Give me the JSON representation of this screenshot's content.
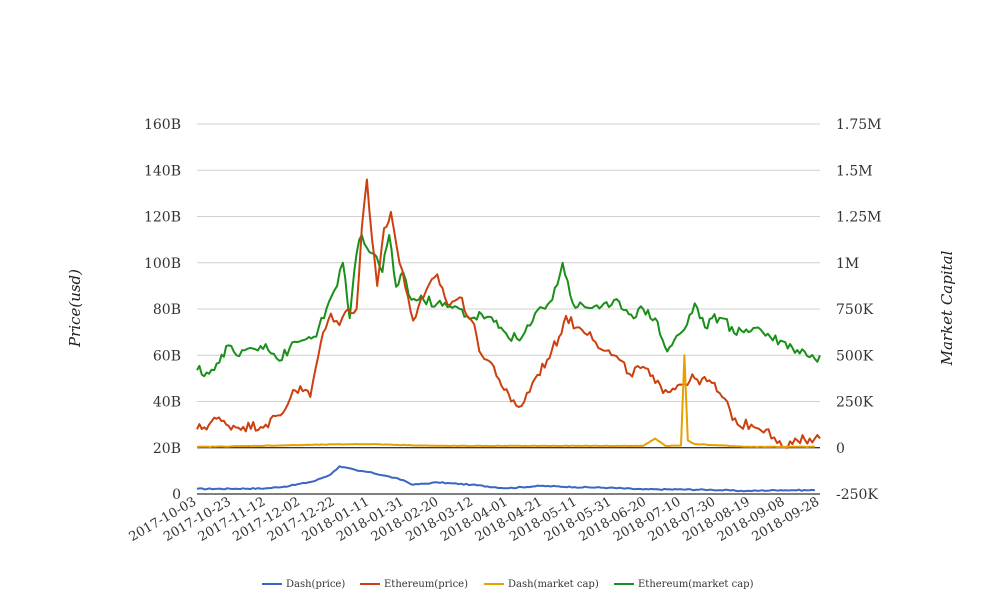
{
  "chart_data": {
    "type": "line",
    "title": "",
    "x_ticks": [
      "2017-10-03",
      "2017-10-23",
      "2017-11-12",
      "2017-12-02",
      "2017-12-22",
      "2018-01-11",
      "2018-01-31",
      "2018-02-20",
      "2018-03-12",
      "2018-04-01",
      "2018-04-21",
      "2018-05-11",
      "2018-05-31",
      "2018-06-20",
      "2018-07-10",
      "2018-07-30",
      "2018-08-19",
      "2018-09-08",
      "2018-09-28"
    ],
    "x_range": [
      "2017-10-03",
      "2018-10-01"
    ],
    "y_left": {
      "label": "Price(usd)",
      "ticks": [
        "0",
        "20B",
        "40B",
        "60B",
        "80B",
        "100B",
        "120B",
        "140B",
        "160B"
      ],
      "range": [
        0,
        160
      ]
    },
    "y_right": {
      "label": "Market Capital",
      "ticks": [
        "-250K",
        "0",
        "250K",
        "500K",
        "750K",
        "1M",
        "1.25M",
        "1.5M",
        "1.75M"
      ],
      "range": [
        -250,
        1750
      ]
    },
    "grid": true,
    "legend_position": "bottom",
    "series": [
      {
        "name": "Dash(price)",
        "axis": "left",
        "color": "#3b67c2",
        "points": [
          [
            "2017-10-03",
            2.2
          ],
          [
            "2017-11-12",
            2.4
          ],
          [
            "2017-11-26",
            3.5
          ],
          [
            "2017-12-10",
            5.5
          ],
          [
            "2017-12-20",
            8.5
          ],
          [
            "2017-12-25",
            12
          ],
          [
            "2018-01-05",
            10
          ],
          [
            "2018-01-11",
            9.5
          ],
          [
            "2018-01-20",
            8
          ],
          [
            "2018-01-31",
            6
          ],
          [
            "2018-02-06",
            4
          ],
          [
            "2018-02-20",
            5
          ],
          [
            "2018-03-12",
            4
          ],
          [
            "2018-04-01",
            2.5
          ],
          [
            "2018-04-21",
            3.5
          ],
          [
            "2018-05-11",
            3
          ],
          [
            "2018-05-31",
            2.7
          ],
          [
            "2018-06-20",
            2
          ],
          [
            "2018-07-10",
            2
          ],
          [
            "2018-07-30",
            1.8
          ],
          [
            "2018-08-19",
            1.3
          ],
          [
            "2018-09-08",
            1.7
          ],
          [
            "2018-09-28",
            1.6
          ]
        ]
      },
      {
        "name": "Ethereum(price)",
        "axis": "left",
        "color": "#cc4010",
        "points": [
          [
            "2017-10-03",
            28
          ],
          [
            "2017-10-10",
            30
          ],
          [
            "2017-10-13",
            33
          ],
          [
            "2017-10-20",
            30
          ],
          [
            "2017-10-30",
            29
          ],
          [
            "2017-11-12",
            30
          ],
          [
            "2017-11-22",
            35
          ],
          [
            "2017-11-28",
            45
          ],
          [
            "2017-12-05",
            45
          ],
          [
            "2017-12-08",
            42
          ],
          [
            "2017-12-14",
            65
          ],
          [
            "2017-12-20",
            78
          ],
          [
            "2017-12-25",
            73
          ],
          [
            "2017-12-30",
            80
          ],
          [
            "2018-01-04",
            80
          ],
          [
            "2018-01-07",
            115
          ],
          [
            "2018-01-10",
            136
          ],
          [
            "2018-01-13",
            110
          ],
          [
            "2018-01-16",
            90
          ],
          [
            "2018-01-20",
            115
          ],
          [
            "2018-01-24",
            122
          ],
          [
            "2018-01-29",
            100
          ],
          [
            "2018-02-03",
            85
          ],
          [
            "2018-02-06",
            75
          ],
          [
            "2018-02-12",
            85
          ],
          [
            "2018-02-20",
            95
          ],
          [
            "2018-02-26",
            82
          ],
          [
            "2018-03-05",
            85
          ],
          [
            "2018-03-12",
            75
          ],
          [
            "2018-03-18",
            60
          ],
          [
            "2018-03-25",
            55
          ],
          [
            "2018-03-31",
            45
          ],
          [
            "2018-04-04",
            40
          ],
          [
            "2018-04-10",
            38
          ],
          [
            "2018-04-18",
            50
          ],
          [
            "2018-04-25",
            58
          ],
          [
            "2018-05-02",
            68
          ],
          [
            "2018-05-06",
            77
          ],
          [
            "2018-05-12",
            72
          ],
          [
            "2018-05-20",
            70
          ],
          [
            "2018-05-28",
            62
          ],
          [
            "2018-06-03",
            60
          ],
          [
            "2018-06-12",
            52
          ],
          [
            "2018-06-20",
            55
          ],
          [
            "2018-06-27",
            48
          ],
          [
            "2018-07-03",
            45
          ],
          [
            "2018-07-10",
            47
          ],
          [
            "2018-07-20",
            50
          ],
          [
            "2018-07-30",
            48
          ],
          [
            "2018-08-05",
            42
          ],
          [
            "2018-08-14",
            30
          ],
          [
            "2018-08-22",
            30
          ],
          [
            "2018-09-01",
            28
          ],
          [
            "2018-09-06",
            22
          ],
          [
            "2018-09-12",
            20
          ],
          [
            "2018-09-18",
            23
          ],
          [
            "2018-09-25",
            24
          ],
          [
            "2018-10-01",
            24
          ]
        ]
      },
      {
        "name": "Dash(market cap)",
        "axis": "right",
        "color": "#e6a000",
        "points": [
          [
            "2017-10-03",
            4
          ],
          [
            "2017-12-22",
            18
          ],
          [
            "2018-01-11",
            20
          ],
          [
            "2018-02-20",
            10
          ],
          [
            "2018-06-20",
            10
          ],
          [
            "2018-06-27",
            50
          ],
          [
            "2018-07-03",
            10
          ],
          [
            "2018-07-12",
            12
          ],
          [
            "2018-07-14",
            500
          ],
          [
            "2018-07-16",
            40
          ],
          [
            "2018-07-20",
            20
          ],
          [
            "2018-08-19",
            5
          ],
          [
            "2018-09-08",
            5
          ],
          [
            "2018-09-28",
            5
          ]
        ]
      },
      {
        "name": "Ethereum(market cap)",
        "axis": "right",
        "color": "#1a8f1a",
        "points": [
          [
            "2017-10-03",
            420
          ],
          [
            "2017-10-10",
            400
          ],
          [
            "2017-10-16",
            460
          ],
          [
            "2017-10-20",
            550
          ],
          [
            "2017-10-26",
            500
          ],
          [
            "2017-11-03",
            540
          ],
          [
            "2017-11-12",
            560
          ],
          [
            "2017-11-20",
            470
          ],
          [
            "2017-11-26",
            540
          ],
          [
            "2017-12-03",
            580
          ],
          [
            "2017-12-10",
            600
          ],
          [
            "2017-12-16",
            700
          ],
          [
            "2017-12-22",
            850
          ],
          [
            "2017-12-27",
            1000
          ],
          [
            "2017-12-31",
            700
          ],
          [
            "2018-01-04",
            1050
          ],
          [
            "2018-01-07",
            1150
          ],
          [
            "2018-01-10",
            1080
          ],
          [
            "2018-01-14",
            1050
          ],
          [
            "2018-01-19",
            950
          ],
          [
            "2018-01-23",
            1150
          ],
          [
            "2018-01-27",
            870
          ],
          [
            "2018-01-31",
            950
          ],
          [
            "2018-02-05",
            800
          ],
          [
            "2018-02-12",
            800
          ],
          [
            "2018-02-20",
            780
          ],
          [
            "2018-02-26",
            760
          ],
          [
            "2018-03-05",
            750
          ],
          [
            "2018-03-12",
            700
          ],
          [
            "2018-03-18",
            720
          ],
          [
            "2018-03-25",
            680
          ],
          [
            "2018-04-01",
            620
          ],
          [
            "2018-04-09",
            580
          ],
          [
            "2018-04-15",
            660
          ],
          [
            "2018-04-21",
            760
          ],
          [
            "2018-04-28",
            800
          ],
          [
            "2018-05-04",
            1000
          ],
          [
            "2018-05-10",
            780
          ],
          [
            "2018-05-17",
            760
          ],
          [
            "2018-05-24",
            770
          ],
          [
            "2018-05-31",
            760
          ],
          [
            "2018-06-06",
            790
          ],
          [
            "2018-06-13",
            720
          ],
          [
            "2018-06-20",
            750
          ],
          [
            "2018-06-27",
            700
          ],
          [
            "2018-07-04",
            520
          ],
          [
            "2018-07-08",
            580
          ],
          [
            "2018-07-14",
            640
          ],
          [
            "2018-07-20",
            780
          ],
          [
            "2018-07-26",
            650
          ],
          [
            "2018-07-30",
            700
          ],
          [
            "2018-08-05",
            700
          ],
          [
            "2018-08-12",
            620
          ],
          [
            "2018-08-19",
            640
          ],
          [
            "2018-08-26",
            650
          ],
          [
            "2018-09-02",
            600
          ],
          [
            "2018-09-08",
            580
          ],
          [
            "2018-09-15",
            540
          ],
          [
            "2018-09-22",
            520
          ],
          [
            "2018-09-28",
            480
          ],
          [
            "2018-10-01",
            500
          ]
        ]
      }
    ]
  }
}
